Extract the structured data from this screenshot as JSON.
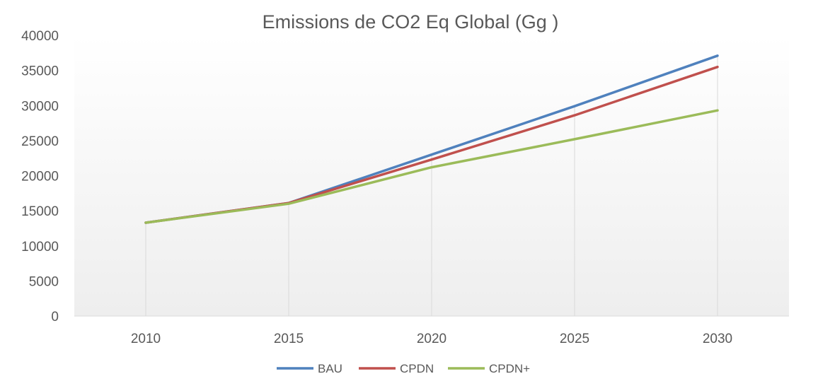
{
  "chart_data": {
    "type": "line",
    "title": "Emissions de CO2 Eq Global (Gg )",
    "xlabel": "",
    "ylabel": "",
    "categories": [
      "2010",
      "2015",
      "2020",
      "2025",
      "2030"
    ],
    "ylim": [
      0,
      40000
    ],
    "yticks": [
      0,
      5000,
      10000,
      15000,
      20000,
      25000,
      30000,
      35000,
      40000
    ],
    "grid": "vertical",
    "legend_position": "bottom",
    "series": [
      {
        "name": "BAU",
        "color": "#4F81BD",
        "values": [
          13300,
          16100,
          23000,
          29900,
          37100
        ]
      },
      {
        "name": "CPDN",
        "color": "#C0504D",
        "values": [
          13300,
          16100,
          22300,
          28600,
          35500
        ]
      },
      {
        "name": "CPDN+",
        "color": "#9BBB59",
        "values": [
          13300,
          16000,
          21200,
          25200,
          29300
        ]
      }
    ]
  }
}
